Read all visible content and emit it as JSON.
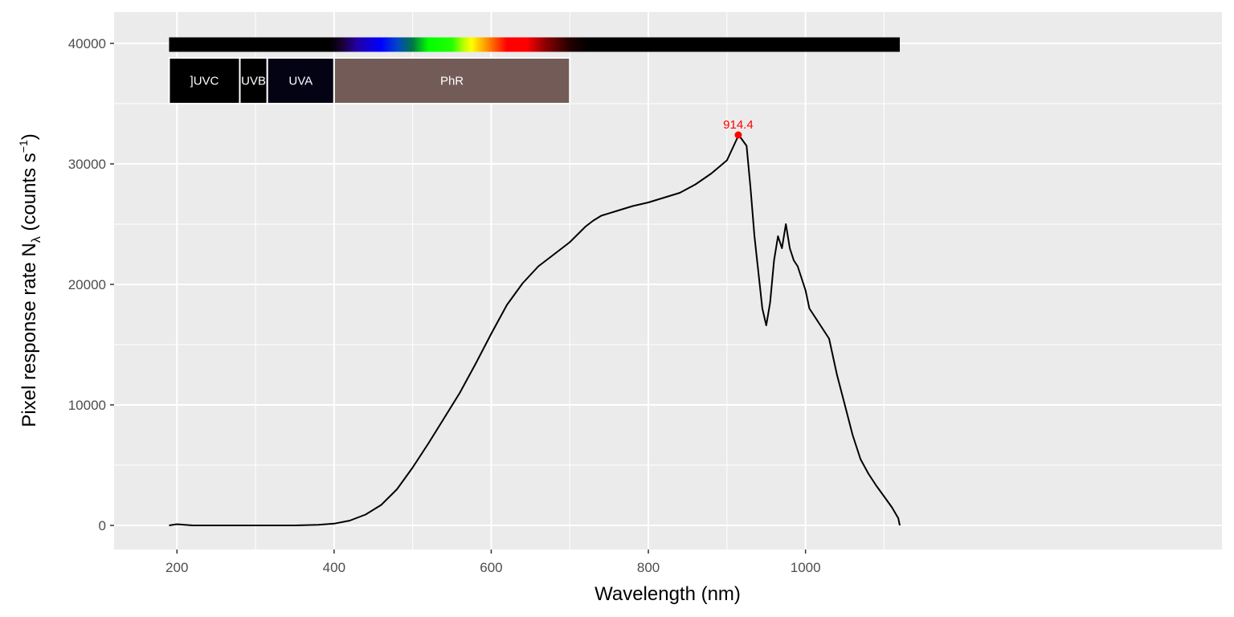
{
  "chart_data": {
    "type": "line",
    "title": "",
    "xlabel": "Wavelength (nm)",
    "ylabel": {
      "prefix": "Pixel  response  rate  N",
      "subscript": "λ",
      "unit_open": "  (counts  s",
      "superscript": "−1",
      "unit_close": ")"
    },
    "xlim": [
      120,
      1530
    ],
    "ylim": [
      -2000,
      42600
    ],
    "x_ticks": [
      {
        "value": 200,
        "label": "200"
      },
      {
        "value": 400,
        "label": "400"
      },
      {
        "value": 600,
        "label": "600"
      },
      {
        "value": 800,
        "label": "800"
      },
      {
        "value": 1000,
        "label": "1000"
      }
    ],
    "x_minor_ticks": [
      300,
      500,
      700,
      900,
      1100
    ],
    "y_ticks": [
      {
        "value": 0,
        "label": "0"
      },
      {
        "value": 10000,
        "label": "10000"
      },
      {
        "value": 20000,
        "label": "20000"
      },
      {
        "value": 30000,
        "label": "30000"
      },
      {
        "value": 40000,
        "label": "40000"
      }
    ],
    "y_minor_ticks": [
      5000,
      15000,
      25000,
      35000
    ],
    "grid": true,
    "background_color": "#ebebeb",
    "line_color": "#000000",
    "series": [
      {
        "x": [
          190,
          200,
          210,
          220,
          250,
          300,
          350,
          380,
          400,
          420,
          440,
          460,
          480,
          500,
          520,
          540,
          560,
          580,
          600,
          620,
          640,
          660,
          680,
          700,
          720,
          730,
          740,
          760,
          780,
          800,
          820,
          840,
          860,
          880,
          900,
          915,
          925,
          930,
          935,
          940,
          945,
          950,
          955,
          960,
          965,
          970,
          975,
          980,
          985,
          990,
          995,
          1000,
          1005,
          1010,
          1020,
          1030,
          1040,
          1050,
          1060,
          1070,
          1080,
          1090,
          1100,
          1110,
          1118,
          1120
        ],
        "y": [
          0,
          100,
          50,
          0,
          0,
          0,
          0,
          50,
          150,
          400,
          900,
          1700,
          3000,
          4800,
          6800,
          8900,
          11000,
          13400,
          15900,
          18300,
          20100,
          21500,
          22500,
          23500,
          24800,
          25300,
          25700,
          26100,
          26500,
          26800,
          27200,
          27600,
          28300,
          29200,
          30300,
          32400,
          31500,
          28000,
          24000,
          21000,
          18000,
          16600,
          18500,
          22000,
          24000,
          23000,
          25000,
          23000,
          22000,
          21500,
          20500,
          19500,
          18000,
          17500,
          16500,
          15500,
          12500,
          10000,
          7500,
          5500,
          4300,
          3300,
          2400,
          1500,
          600,
          0
        ]
      }
    ],
    "peak": {
      "x": 914.4,
      "y": 32400,
      "label": "914.4",
      "color": "#ff0000"
    },
    "color_bar": {
      "y_top": 40500,
      "y_bottom": 39300,
      "x_start": 190,
      "x_end": 1120,
      "stops": [
        {
          "nm": 190,
          "color": "#000000"
        },
        {
          "nm": 395,
          "color": "#000000"
        },
        {
          "nm": 410,
          "color": "#1a0033"
        },
        {
          "nm": 430,
          "color": "#2200aa"
        },
        {
          "nm": 460,
          "color": "#0000ff"
        },
        {
          "nm": 480,
          "color": "#0044cc"
        },
        {
          "nm": 500,
          "color": "#007744"
        },
        {
          "nm": 520,
          "color": "#00ff00"
        },
        {
          "nm": 550,
          "color": "#22ff00"
        },
        {
          "nm": 565,
          "color": "#bbff00"
        },
        {
          "nm": 575,
          "color": "#ffff00"
        },
        {
          "nm": 590,
          "color": "#ffaa00"
        },
        {
          "nm": 605,
          "color": "#ff5500"
        },
        {
          "nm": 620,
          "color": "#ff0000"
        },
        {
          "nm": 645,
          "color": "#ff0000"
        },
        {
          "nm": 670,
          "color": "#880000"
        },
        {
          "nm": 700,
          "color": "#220000"
        },
        {
          "nm": 720,
          "color": "#050000"
        },
        {
          "nm": 730,
          "color": "#000000"
        },
        {
          "nm": 1120,
          "color": "#000000"
        }
      ]
    },
    "wavebands": [
      {
        "label": "]UVC",
        "x_start": 190,
        "x_end": 280,
        "color": "#000000"
      },
      {
        "label": "UVB",
        "x_start": 280,
        "x_end": 315,
        "color": "#000000"
      },
      {
        "label": "UVA",
        "x_start": 315,
        "x_end": 400,
        "color": "#030314"
      },
      {
        "label": "PhR",
        "x_start": 400,
        "x_end": 700,
        "color": "#735c57"
      }
    ],
    "waveband_ylim": [
      35000,
      38800
    ]
  }
}
